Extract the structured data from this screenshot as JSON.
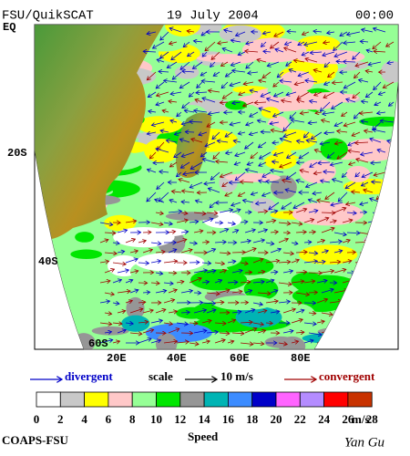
{
  "header": {
    "left": "FSU/QuikSCAT",
    "center": "19 July 2004",
    "right": "00:00"
  },
  "map": {
    "lat_labels": [
      "EQ",
      "20S",
      "40S",
      "60S"
    ],
    "lon_labels": [
      "20E",
      "40E",
      "60E",
      "80E"
    ]
  },
  "legend": {
    "divergent": "divergent",
    "scale": "scale",
    "scale_value": "10 m/s",
    "convergent": "convergent",
    "divergent_color": "#0000c8",
    "convergent_color": "#a00000"
  },
  "colorbar": {
    "ticks": [
      0,
      2,
      4,
      6,
      8,
      10,
      12,
      14,
      16,
      18,
      20,
      22,
      24,
      26,
      28
    ],
    "unit": "m/s",
    "label": "Speed",
    "colors": [
      "#ffffff",
      "#c8c8c8",
      "#ffff00",
      "#ffc8c8",
      "#96ff96",
      "#00e600",
      "#969696",
      "#00b4b4",
      "#3c8cff",
      "#0000c8",
      "#ff64ff",
      "#b48cff",
      "#ff0000",
      "#c83200",
      "#000000"
    ]
  },
  "footer": {
    "left": "COAPS-FSU",
    "right": "Yan Gu"
  }
}
